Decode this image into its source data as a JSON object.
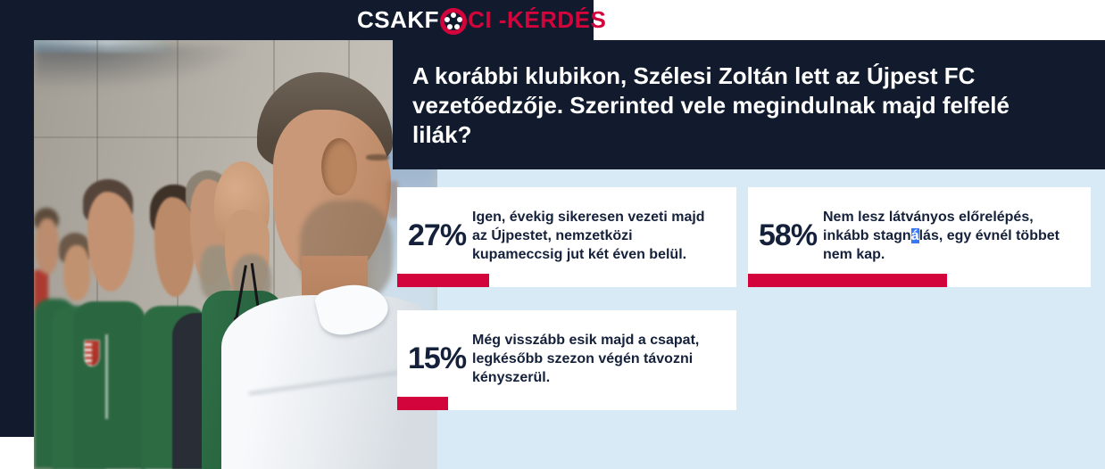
{
  "brand": {
    "part1": "CSAKF",
    "part2": "CI",
    "part3": " -KÉRDÉS",
    "ball_icon": "soccer-ball-icon",
    "colors": {
      "navy": "#111b2d",
      "red": "#d3043c",
      "white": "#ffffff"
    }
  },
  "question": {
    "text": "A korábbi klubikon, Szélesi Zoltán lett az Újpest FC\nvezetőedzője. Szerinted vele megindulnak majd felfelé\nlilák?"
  },
  "poll": {
    "options": [
      {
        "percent": "27%",
        "value": 27,
        "text": "Igen, évekig sikeresen vezeti majd\naz Újpestet, nemzetközi\nkupameccsig jut két éven belül."
      },
      {
        "percent": "58%",
        "value": 58,
        "text_before": "Nem lesz látványos előrelépés,\ninkább stagn",
        "text_selected": "á",
        "text_after": "lás, egy évnél többet\nnem kap."
      },
      {
        "percent": "15%",
        "value": 15,
        "text": "Még visszább esik majd a csapat,\nlegkésőbb szezon végén távozni\nkényszerül."
      }
    ],
    "bar_color": "#d3043c",
    "card_bg": "#ffffff",
    "panel_bg": "#d9eaf7",
    "text_color": "#15213a",
    "selection_bg": "#3579f6"
  }
}
